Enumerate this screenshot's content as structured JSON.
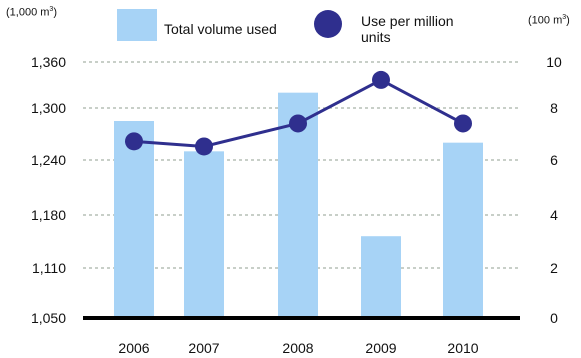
{
  "units": {
    "left_base": "(1,000 m",
    "left_sup": "3",
    "left_close": ")",
    "right_base": "(100 m",
    "right_sup": "3",
    "right_close": ")"
  },
  "legend": {
    "bar_label": "Total volume used",
    "line_label": "Use per million units"
  },
  "colors": {
    "bar": "#a7d3f6",
    "line": "#2f2f8e",
    "grid": "#b5bfb5",
    "axis": "#000000"
  },
  "chart_data": {
    "type": "bar",
    "categories": [
      "2006",
      "2007",
      "2008",
      "2009",
      "2010"
    ],
    "series": [
      {
        "name": "Total volume used",
        "type": "bar",
        "axis": "left",
        "values": [
          1285,
          1250,
          1320,
          1152,
          1260
        ]
      },
      {
        "name": "Use per million units",
        "type": "line",
        "axis": "right",
        "values": [
          6.9,
          6.7,
          7.6,
          9.3,
          7.6
        ]
      }
    ],
    "left_axis": {
      "ticks": [
        "1,050",
        "1,110",
        "1,180",
        "1,240",
        "1,300",
        "1,360"
      ]
    },
    "right_axis": {
      "ticks": [
        "0",
        "2",
        "4",
        "6",
        "8",
        "10"
      ],
      "ylim": [
        0,
        10
      ]
    },
    "grid": true,
    "legend_position": "top"
  }
}
